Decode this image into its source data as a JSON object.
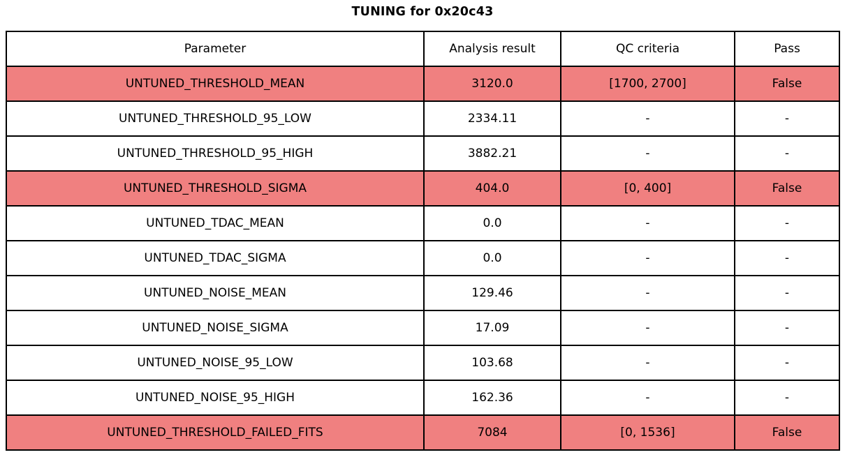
{
  "title": "TUNING for 0x20c43",
  "colors": {
    "fail_row_background": "#f08080",
    "normal_row_background": "#ffffff",
    "border": "#000000"
  },
  "table": {
    "headers": [
      "Parameter",
      "Analysis result",
      "QC criteria",
      "Pass"
    ],
    "rows": [
      {
        "parameter": "UNTUNED_THRESHOLD_MEAN",
        "result": "3120.0",
        "qc": "[1700, 2700]",
        "pass": "False",
        "failed": true
      },
      {
        "parameter": "UNTUNED_THRESHOLD_95_LOW",
        "result": "2334.11",
        "qc": "-",
        "pass": "-",
        "failed": false
      },
      {
        "parameter": "UNTUNED_THRESHOLD_95_HIGH",
        "result": "3882.21",
        "qc": "-",
        "pass": "-",
        "failed": false
      },
      {
        "parameter": "UNTUNED_THRESHOLD_SIGMA",
        "result": "404.0",
        "qc": "[0, 400]",
        "pass": "False",
        "failed": true
      },
      {
        "parameter": "UNTUNED_TDAC_MEAN",
        "result": "0.0",
        "qc": "-",
        "pass": "-",
        "failed": false
      },
      {
        "parameter": "UNTUNED_TDAC_SIGMA",
        "result": "0.0",
        "qc": "-",
        "pass": "-",
        "failed": false
      },
      {
        "parameter": "UNTUNED_NOISE_MEAN",
        "result": "129.46",
        "qc": "-",
        "pass": "-",
        "failed": false
      },
      {
        "parameter": "UNTUNED_NOISE_SIGMA",
        "result": "17.09",
        "qc": "-",
        "pass": "-",
        "failed": false
      },
      {
        "parameter": "UNTUNED_NOISE_95_LOW",
        "result": "103.68",
        "qc": "-",
        "pass": "-",
        "failed": false
      },
      {
        "parameter": "UNTUNED_NOISE_95_HIGH",
        "result": "162.36",
        "qc": "-",
        "pass": "-",
        "failed": false
      },
      {
        "parameter": "UNTUNED_THRESHOLD_FAILED_FITS",
        "result": "7084",
        "qc": "[0, 1536]",
        "pass": "False",
        "failed": true
      }
    ]
  },
  "chart_data": {
    "type": "table",
    "title": "TUNING for 0x20c43",
    "columns": [
      "Parameter",
      "Analysis result",
      "QC criteria",
      "Pass"
    ],
    "rows": [
      [
        "UNTUNED_THRESHOLD_MEAN",
        "3120.0",
        "[1700, 2700]",
        "False"
      ],
      [
        "UNTUNED_THRESHOLD_95_LOW",
        "2334.11",
        "-",
        "-"
      ],
      [
        "UNTUNED_THRESHOLD_95_HIGH",
        "3882.21",
        "-",
        "-"
      ],
      [
        "UNTUNED_THRESHOLD_SIGMA",
        "404.0",
        "[0, 400]",
        "False"
      ],
      [
        "UNTUNED_TDAC_MEAN",
        "0.0",
        "-",
        "-"
      ],
      [
        "UNTUNED_TDAC_SIGMA",
        "0.0",
        "-",
        "-"
      ],
      [
        "UNTUNED_NOISE_MEAN",
        "129.46",
        "-",
        "-"
      ],
      [
        "UNTUNED_NOISE_SIGMA",
        "17.09",
        "-",
        "-"
      ],
      [
        "UNTUNED_NOISE_95_LOW",
        "103.68",
        "-",
        "-"
      ],
      [
        "UNTUNED_NOISE_95_HIGH",
        "162.36",
        "-",
        "-"
      ],
      [
        "UNTUNED_THRESHOLD_FAILED_FITS",
        "7084",
        "[0, 1536]",
        "False"
      ]
    ],
    "highlighted_fail_rows": [
      0,
      3,
      10
    ],
    "layout": "single centered table with bold title above, grid on, black borders"
  }
}
